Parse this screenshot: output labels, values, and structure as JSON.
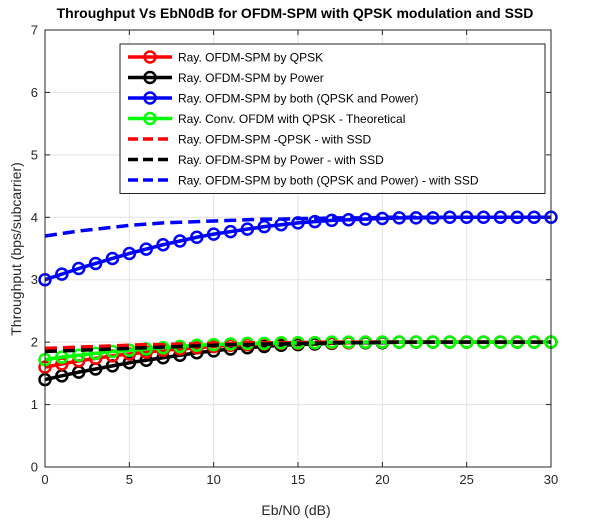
{
  "chart_data": {
    "type": "line",
    "title": "Throughput Vs EbN0dB for OFDM-SPM with QPSK modulation and SSD",
    "xlabel": "Eb/N0 (dB)",
    "ylabel": "Throughput (bps/subcarrier)",
    "xlim": [
      0,
      30
    ],
    "ylim": [
      0,
      7
    ],
    "xticks": [
      0,
      5,
      10,
      15,
      20,
      25,
      30
    ],
    "yticks": [
      0,
      1,
      2,
      3,
      4,
      5,
      6,
      7
    ],
    "grid": true,
    "legend_position": "top-right",
    "x": [
      0,
      1,
      2,
      3,
      4,
      5,
      6,
      7,
      8,
      9,
      10,
      11,
      12,
      13,
      14,
      15,
      16,
      17,
      18,
      19,
      20,
      21,
      22,
      23,
      24,
      25,
      26,
      27,
      28,
      29,
      30
    ],
    "series": [
      {
        "name": "Ray. OFDM-SPM by QPSK",
        "color": "#ff0000",
        "style": "solid",
        "marker": "circle",
        "values": [
          1.6,
          1.65,
          1.7,
          1.74,
          1.78,
          1.81,
          1.84,
          1.87,
          1.89,
          1.91,
          1.93,
          1.95,
          1.96,
          1.97,
          1.98,
          1.98,
          1.99,
          1.99,
          1.99,
          2.0,
          2.0,
          2.0,
          2.0,
          2.0,
          2.0,
          2.0,
          2.0,
          2.0,
          2.0,
          2.0,
          2.0
        ]
      },
      {
        "name": "Ray. OFDM-SPM by Power",
        "color": "#000000",
        "style": "solid",
        "marker": "circle",
        "values": [
          1.4,
          1.46,
          1.52,
          1.57,
          1.62,
          1.67,
          1.71,
          1.75,
          1.79,
          1.83,
          1.86,
          1.89,
          1.91,
          1.93,
          1.95,
          1.96,
          1.97,
          1.98,
          1.99,
          1.99,
          1.99,
          2.0,
          2.0,
          2.0,
          2.0,
          2.0,
          2.0,
          2.0,
          2.0,
          2.0,
          2.0
        ]
      },
      {
        "name": "Ray. OFDM-SPM by both (QPSK and Power)",
        "color": "#0000ff",
        "style": "solid",
        "marker": "circle",
        "values": [
          3.0,
          3.09,
          3.18,
          3.26,
          3.34,
          3.42,
          3.49,
          3.56,
          3.62,
          3.68,
          3.73,
          3.77,
          3.81,
          3.85,
          3.88,
          3.91,
          3.93,
          3.95,
          3.96,
          3.97,
          3.98,
          3.99,
          3.99,
          3.99,
          4.0,
          4.0,
          4.0,
          4.0,
          4.0,
          4.0,
          4.0
        ]
      },
      {
        "name": "Ray. Conv. OFDM with QPSK - Theoretical",
        "color": "#00ff00",
        "style": "solid",
        "marker": "circle",
        "values": [
          1.72,
          1.76,
          1.79,
          1.82,
          1.85,
          1.87,
          1.89,
          1.91,
          1.93,
          1.95,
          1.96,
          1.97,
          1.98,
          1.98,
          1.99,
          1.99,
          1.99,
          2.0,
          2.0,
          2.0,
          2.0,
          2.0,
          2.0,
          2.0,
          2.0,
          2.0,
          2.0,
          2.0,
          2.0,
          2.0,
          2.0
        ]
      },
      {
        "name": "Ray. OFDM-SPM -QPSK - with SSD",
        "color": "#ff0000",
        "style": "dashed",
        "marker": "none",
        "values": [
          1.9,
          1.91,
          1.92,
          1.93,
          1.94,
          1.95,
          1.96,
          1.96,
          1.97,
          1.97,
          1.98,
          1.98,
          1.99,
          1.99,
          1.99,
          1.99,
          2.0,
          2.0,
          2.0,
          2.0,
          2.0,
          2.0,
          2.0,
          2.0,
          2.0,
          2.0,
          2.0,
          2.0,
          2.0,
          2.0,
          2.0
        ]
      },
      {
        "name": "Ray. OFDM-SPM by Power - with SSD",
        "color": "#000000",
        "style": "dashed",
        "marker": "none",
        "values": [
          1.85,
          1.86,
          1.87,
          1.88,
          1.89,
          1.9,
          1.91,
          1.92,
          1.93,
          1.94,
          1.95,
          1.96,
          1.96,
          1.97,
          1.97,
          1.98,
          1.98,
          1.99,
          1.99,
          1.99,
          2.0,
          2.0,
          2.0,
          2.0,
          2.0,
          2.0,
          2.0,
          2.0,
          2.0,
          2.0,
          2.0
        ]
      },
      {
        "name": "Ray. OFDM-SPM by both (QPSK and Power) - with SSD",
        "color": "#0000ff",
        "style": "dashed",
        "marker": "none",
        "values": [
          3.7,
          3.74,
          3.78,
          3.81,
          3.84,
          3.87,
          3.89,
          3.91,
          3.92,
          3.93,
          3.94,
          3.95,
          3.96,
          3.97,
          3.97,
          3.98,
          3.98,
          3.99,
          3.99,
          3.99,
          4.0,
          4.0,
          4.0,
          4.0,
          4.0,
          4.0,
          4.0,
          4.0,
          4.0,
          4.0,
          4.0
        ]
      }
    ]
  }
}
